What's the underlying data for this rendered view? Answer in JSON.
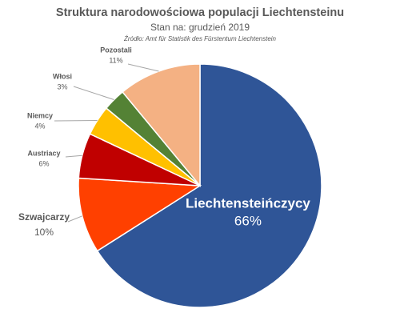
{
  "chart_data": {
    "type": "pie",
    "title": "Struktura narodowościowa populacji Liechtensteinu",
    "subtitle": "Stan na: grudzień 2019",
    "source": "Źródło: Amt für Statistik des Fürstentum Liechtenstein",
    "categories": [
      "Liechtensteińczycy",
      "Szwajcarzy",
      "Austriacy",
      "Niemcy",
      "Włosi",
      "Pozostali"
    ],
    "values": [
      66,
      10,
      6,
      4,
      3,
      11
    ],
    "value_labels": [
      "66%",
      "10%",
      "6%",
      "4%",
      "3%",
      "11%"
    ],
    "colors": [
      "#2f5597",
      "#ff4000",
      "#c00000",
      "#ffc000",
      "#548235",
      "#f4b183"
    ]
  }
}
